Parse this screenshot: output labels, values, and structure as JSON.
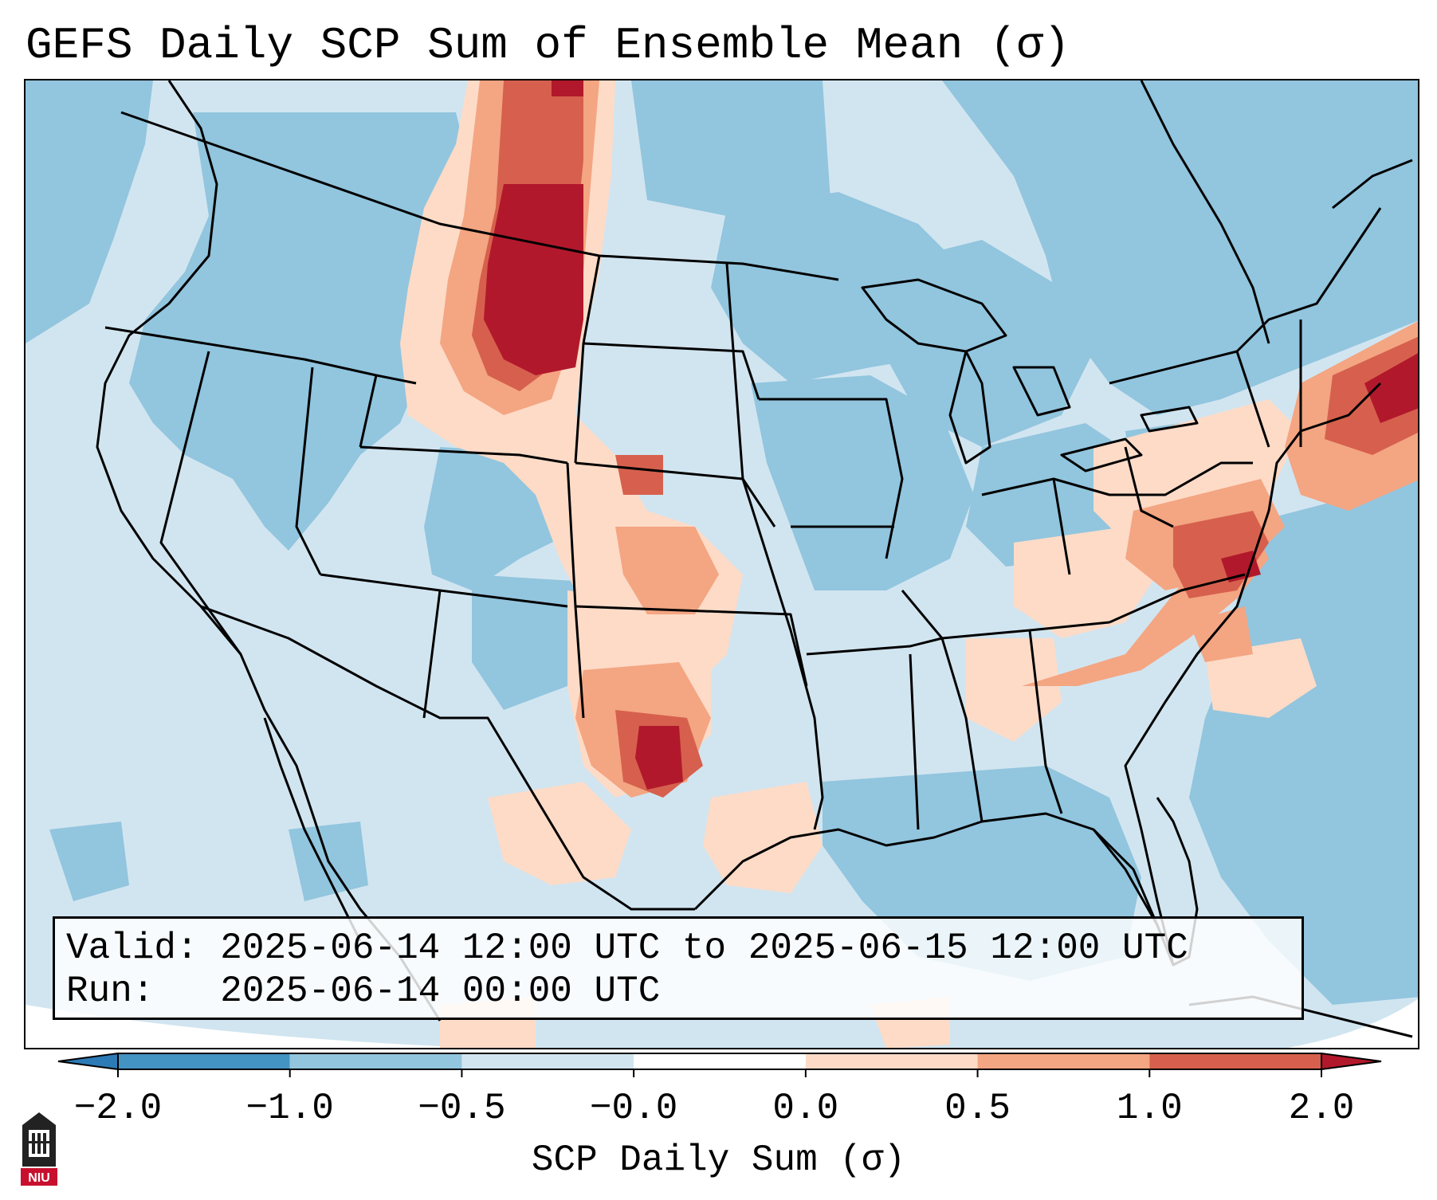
{
  "title": "GEFS Daily SCP Sum of Ensemble Mean (σ)",
  "valid_line": "Valid: 2025-06-14 12:00 UTC to 2025-06-15 12:00 UTC",
  "run_line": "Run:   2025-06-14 00:00 UTC",
  "colorbar": {
    "label": "SCP Daily Sum (σ)",
    "ticks": [
      "−2.0",
      "−1.0",
      "−0.5",
      "−0.0",
      "0.0",
      "0.5",
      "1.0",
      "2.0"
    ],
    "colors": [
      "#2c7bb6",
      "#4393c3",
      "#92c5de",
      "#d1e5f0",
      "#ffffff",
      "#fddbc7",
      "#f4a582",
      "#d6604d",
      "#b2182b"
    ],
    "extend": "both"
  },
  "logo_text": "NIU",
  "palette": {
    "ocean_bg": "#d1e5f0",
    "land_neg": "#92c5de",
    "neg_strong": "#4393c3",
    "pos_weak": "#fddbc7",
    "pos_mid": "#f4a582",
    "pos_strong": "#d6604d",
    "pos_max": "#b2182b",
    "borders": "#000000"
  }
}
